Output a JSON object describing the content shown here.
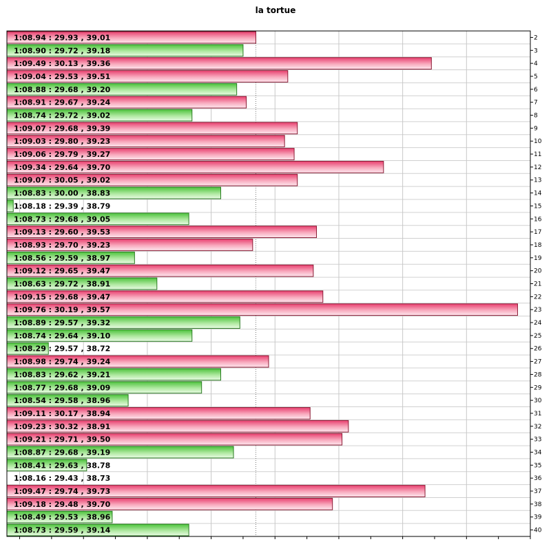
{
  "chart_data": {
    "type": "bar",
    "orientation": "horizontal",
    "title": "la tortue",
    "xlabel": "",
    "ylabel": "",
    "grid": true,
    "x_unit": "seconds",
    "xlim": [
      68.16,
      69.8
    ],
    "colors": {
      "slower": "#e63c6a",
      "faster": "#55c943"
    },
    "reference_value": 68.94,
    "rows": [
      {
        "lap": "2",
        "label": "1:08.94  :  29.93 , 39.01",
        "value": 68.94,
        "category": "slower"
      },
      {
        "lap": "3",
        "label": "1:08.90  :  29.72 , 39.18",
        "value": 68.9,
        "category": "faster"
      },
      {
        "lap": "4",
        "label": "1:09.49  :  30.13 , 39.36",
        "value": 69.49,
        "category": "slower"
      },
      {
        "lap": "5",
        "label": "1:09.04  :  29.53 , 39.51",
        "value": 69.04,
        "category": "slower"
      },
      {
        "lap": "6",
        "label": "1:08.88  :  29.68 , 39.20",
        "value": 68.88,
        "category": "faster"
      },
      {
        "lap": "7",
        "label": "1:08.91  :  29.67 , 39.24",
        "value": 68.91,
        "category": "slower"
      },
      {
        "lap": "8",
        "label": "1:08.74  :  29.72 , 39.02",
        "value": 68.74,
        "category": "faster"
      },
      {
        "lap": "9",
        "label": "1:09.07  :  29.68 , 39.39",
        "value": 69.07,
        "category": "slower"
      },
      {
        "lap": "10",
        "label": "1:09.03  :  29.80 , 39.23",
        "value": 69.03,
        "category": "slower"
      },
      {
        "lap": "11",
        "label": "1:09.06  :  29.79 , 39.27",
        "value": 69.06,
        "category": "slower"
      },
      {
        "lap": "12",
        "label": "1:09.34  :  29.64 , 39.70",
        "value": 69.34,
        "category": "slower"
      },
      {
        "lap": "13",
        "label": "1:09.07  :  30.05 , 39.02",
        "value": 69.07,
        "category": "slower"
      },
      {
        "lap": "14",
        "label": "1:08.83  :  30.00 , 38.83",
        "value": 68.83,
        "category": "faster"
      },
      {
        "lap": "15",
        "label": "1:08.18  :  29.39 , 38.79",
        "value": 68.18,
        "category": "faster"
      },
      {
        "lap": "16",
        "label": "1:08.73  :  29.68 , 39.05",
        "value": 68.73,
        "category": "faster"
      },
      {
        "lap": "17",
        "label": "1:09.13  :  29.60 , 39.53",
        "value": 69.13,
        "category": "slower"
      },
      {
        "lap": "18",
        "label": "1:08.93  :  29.70 , 39.23",
        "value": 68.93,
        "category": "slower"
      },
      {
        "lap": "19",
        "label": "1:08.56  :  29.59 , 38.97",
        "value": 68.56,
        "category": "faster"
      },
      {
        "lap": "20",
        "label": "1:09.12  :  29.65 , 39.47",
        "value": 69.12,
        "category": "slower"
      },
      {
        "lap": "21",
        "label": "1:08.63  :  29.72 , 38.91",
        "value": 68.63,
        "category": "faster"
      },
      {
        "lap": "22",
        "label": "1:09.15  :  29.68 , 39.47",
        "value": 69.15,
        "category": "slower"
      },
      {
        "lap": "23",
        "label": "1:09.76  :  30.19 , 39.57",
        "value": 69.76,
        "category": "slower"
      },
      {
        "lap": "24",
        "label": "1:08.89  :  29.57 , 39.32",
        "value": 68.89,
        "category": "faster"
      },
      {
        "lap": "25",
        "label": "1:08.74  :  29.64 , 39.10",
        "value": 68.74,
        "category": "faster"
      },
      {
        "lap": "26",
        "label": "1:08.29  :  29.57 , 38.72",
        "value": 68.29,
        "category": "faster"
      },
      {
        "lap": "27",
        "label": "1:08.98  :  29.74 , 39.24",
        "value": 68.98,
        "category": "slower"
      },
      {
        "lap": "28",
        "label": "1:08.83  :  29.62 , 39.21",
        "value": 68.83,
        "category": "faster"
      },
      {
        "lap": "29",
        "label": "1:08.77  :  29.68 , 39.09",
        "value": 68.77,
        "category": "faster"
      },
      {
        "lap": "30",
        "label": "1:08.54  :  29.58 , 38.96",
        "value": 68.54,
        "category": "faster"
      },
      {
        "lap": "31",
        "label": "1:09.11  :  30.17 , 38.94",
        "value": 69.11,
        "category": "slower"
      },
      {
        "lap": "32",
        "label": "1:09.23  :  30.32 , 38.91",
        "value": 69.23,
        "category": "slower"
      },
      {
        "lap": "33",
        "label": "1:09.21  :  29.71 , 39.50",
        "value": 69.21,
        "category": "slower"
      },
      {
        "lap": "34",
        "label": "1:08.87  :  29.68 , 39.19",
        "value": 68.87,
        "category": "faster"
      },
      {
        "lap": "35",
        "label": "1:08.41  :  29.63 , 38.78",
        "value": 68.41,
        "category": "faster"
      },
      {
        "lap": "36",
        "label": "1:08.16  :  29.43 , 38.73",
        "value": 68.16,
        "category": "faster"
      },
      {
        "lap": "37",
        "label": "1:09.47  :  29.74 , 39.73",
        "value": 69.47,
        "category": "slower"
      },
      {
        "lap": "38",
        "label": "1:09.18  :  29.48 , 39.70",
        "value": 69.18,
        "category": "slower"
      },
      {
        "lap": "39",
        "label": "1:08.49  :  29.53 , 38.96",
        "value": 68.49,
        "category": "faster"
      },
      {
        "lap": "40",
        "label": "1:08.73  :  29.59 , 39.14",
        "value": 68.73,
        "category": "faster"
      }
    ]
  }
}
